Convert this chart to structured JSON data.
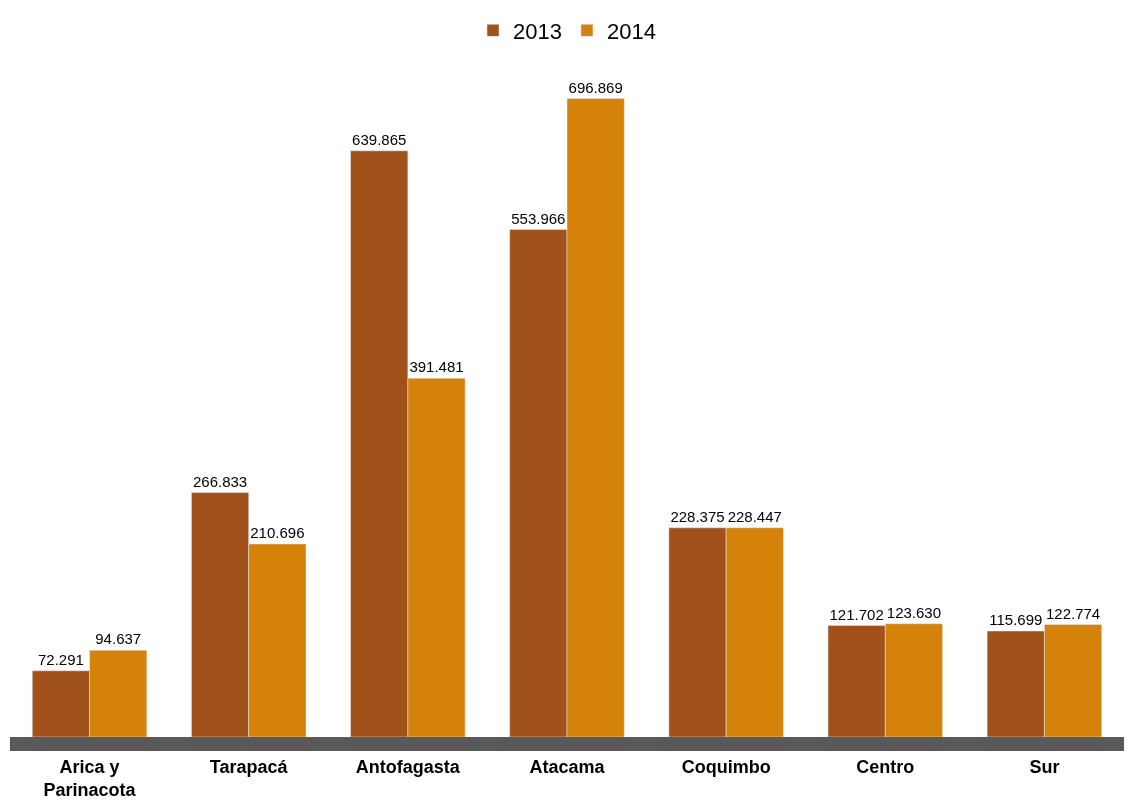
{
  "chart_data": {
    "type": "bar",
    "categories": [
      "Arica y Parinacota",
      "Tarapacá",
      "Antofagasta",
      "Atacama",
      "Coquimbo",
      "Centro",
      "Sur"
    ],
    "series": [
      {
        "name": "2013",
        "color": "#a0521a",
        "values": [
          72291,
          266833,
          639865,
          553966,
          228375,
          121702,
          115699
        ],
        "value_labels": [
          "72.291",
          "266.833",
          "639.865",
          "553.966",
          "228.375",
          "121.702",
          "115.699"
        ]
      },
      {
        "name": "2014",
        "color": "#d4820a",
        "values": [
          94637,
          210696,
          391481,
          696869,
          228447,
          123630,
          122774
        ],
        "value_labels": [
          "94.637",
          "210.696",
          "391.481",
          "696.869",
          "228.447",
          "123.630",
          "122.774"
        ]
      }
    ],
    "legend": "top"
  }
}
